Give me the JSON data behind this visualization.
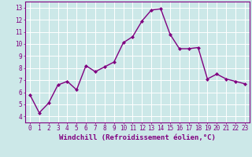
{
  "x": [
    0,
    1,
    2,
    3,
    4,
    5,
    6,
    7,
    8,
    9,
    10,
    11,
    12,
    13,
    14,
    15,
    16,
    17,
    18,
    19,
    20,
    21,
    22,
    23
  ],
  "y": [
    5.8,
    4.3,
    5.1,
    6.6,
    6.9,
    6.2,
    8.2,
    7.7,
    8.1,
    8.5,
    10.1,
    10.6,
    11.9,
    12.8,
    12.9,
    10.8,
    9.6,
    9.6,
    9.7,
    7.1,
    7.5,
    7.1,
    6.9,
    6.7
  ],
  "line_color": "#800080",
  "marker": "D",
  "marker_size": 2.0,
  "line_width": 1.0,
  "bg_color": "#cce8e8",
  "grid_color": "#ffffff",
  "xlabel": "Windchill (Refroidissement éolien,°C)",
  "xlabel_color": "#800080",
  "tick_color": "#800080",
  "label_color": "#800080",
  "ylim": [
    3.5,
    13.5
  ],
  "xlim": [
    -0.5,
    23.5
  ],
  "yticks": [
    4,
    5,
    6,
    7,
    8,
    9,
    10,
    11,
    12,
    13
  ],
  "xticks": [
    0,
    1,
    2,
    3,
    4,
    5,
    6,
    7,
    8,
    9,
    10,
    11,
    12,
    13,
    14,
    15,
    16,
    17,
    18,
    19,
    20,
    21,
    22,
    23
  ],
  "tick_fontsize": 5.5,
  "xlabel_fontsize": 6.5,
  "spine_color": "#800080"
}
